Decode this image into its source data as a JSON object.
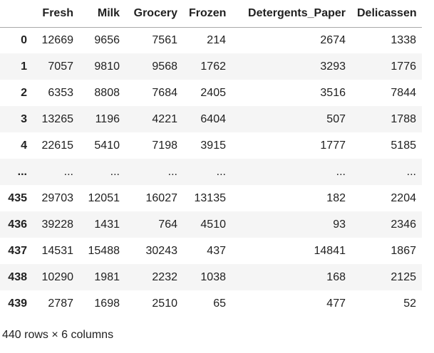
{
  "table": {
    "index_header": "",
    "columns": [
      "Fresh",
      "Milk",
      "Grocery",
      "Frozen",
      "Detergents_Paper",
      "Delicassen"
    ],
    "rows": [
      {
        "index": "0",
        "values": [
          "12669",
          "9656",
          "7561",
          "214",
          "2674",
          "1338"
        ]
      },
      {
        "index": "1",
        "values": [
          "7057",
          "9810",
          "9568",
          "1762",
          "3293",
          "1776"
        ]
      },
      {
        "index": "2",
        "values": [
          "6353",
          "8808",
          "7684",
          "2405",
          "3516",
          "7844"
        ]
      },
      {
        "index": "3",
        "values": [
          "13265",
          "1196",
          "4221",
          "6404",
          "507",
          "1788"
        ]
      },
      {
        "index": "4",
        "values": [
          "22615",
          "5410",
          "7198",
          "3915",
          "1777",
          "5185"
        ]
      },
      {
        "index": "...",
        "values": [
          "...",
          "...",
          "...",
          "...",
          "...",
          "..."
        ]
      },
      {
        "index": "435",
        "values": [
          "29703",
          "12051",
          "16027",
          "13135",
          "182",
          "2204"
        ]
      },
      {
        "index": "436",
        "values": [
          "39228",
          "1431",
          "764",
          "4510",
          "93",
          "2346"
        ]
      },
      {
        "index": "437",
        "values": [
          "14531",
          "15488",
          "30243",
          "437",
          "14841",
          "1867"
        ]
      },
      {
        "index": "438",
        "values": [
          "10290",
          "1981",
          "2232",
          "1038",
          "168",
          "2125"
        ]
      },
      {
        "index": "439",
        "values": [
          "2787",
          "1698",
          "2510",
          "65",
          "477",
          "52"
        ]
      }
    ],
    "footer": "440 rows × 6 columns"
  },
  "colors": {
    "row_stripe": "#f5f5f5",
    "text": "#212121",
    "header_border": "#a8a8a8",
    "background": "#ffffff"
  }
}
